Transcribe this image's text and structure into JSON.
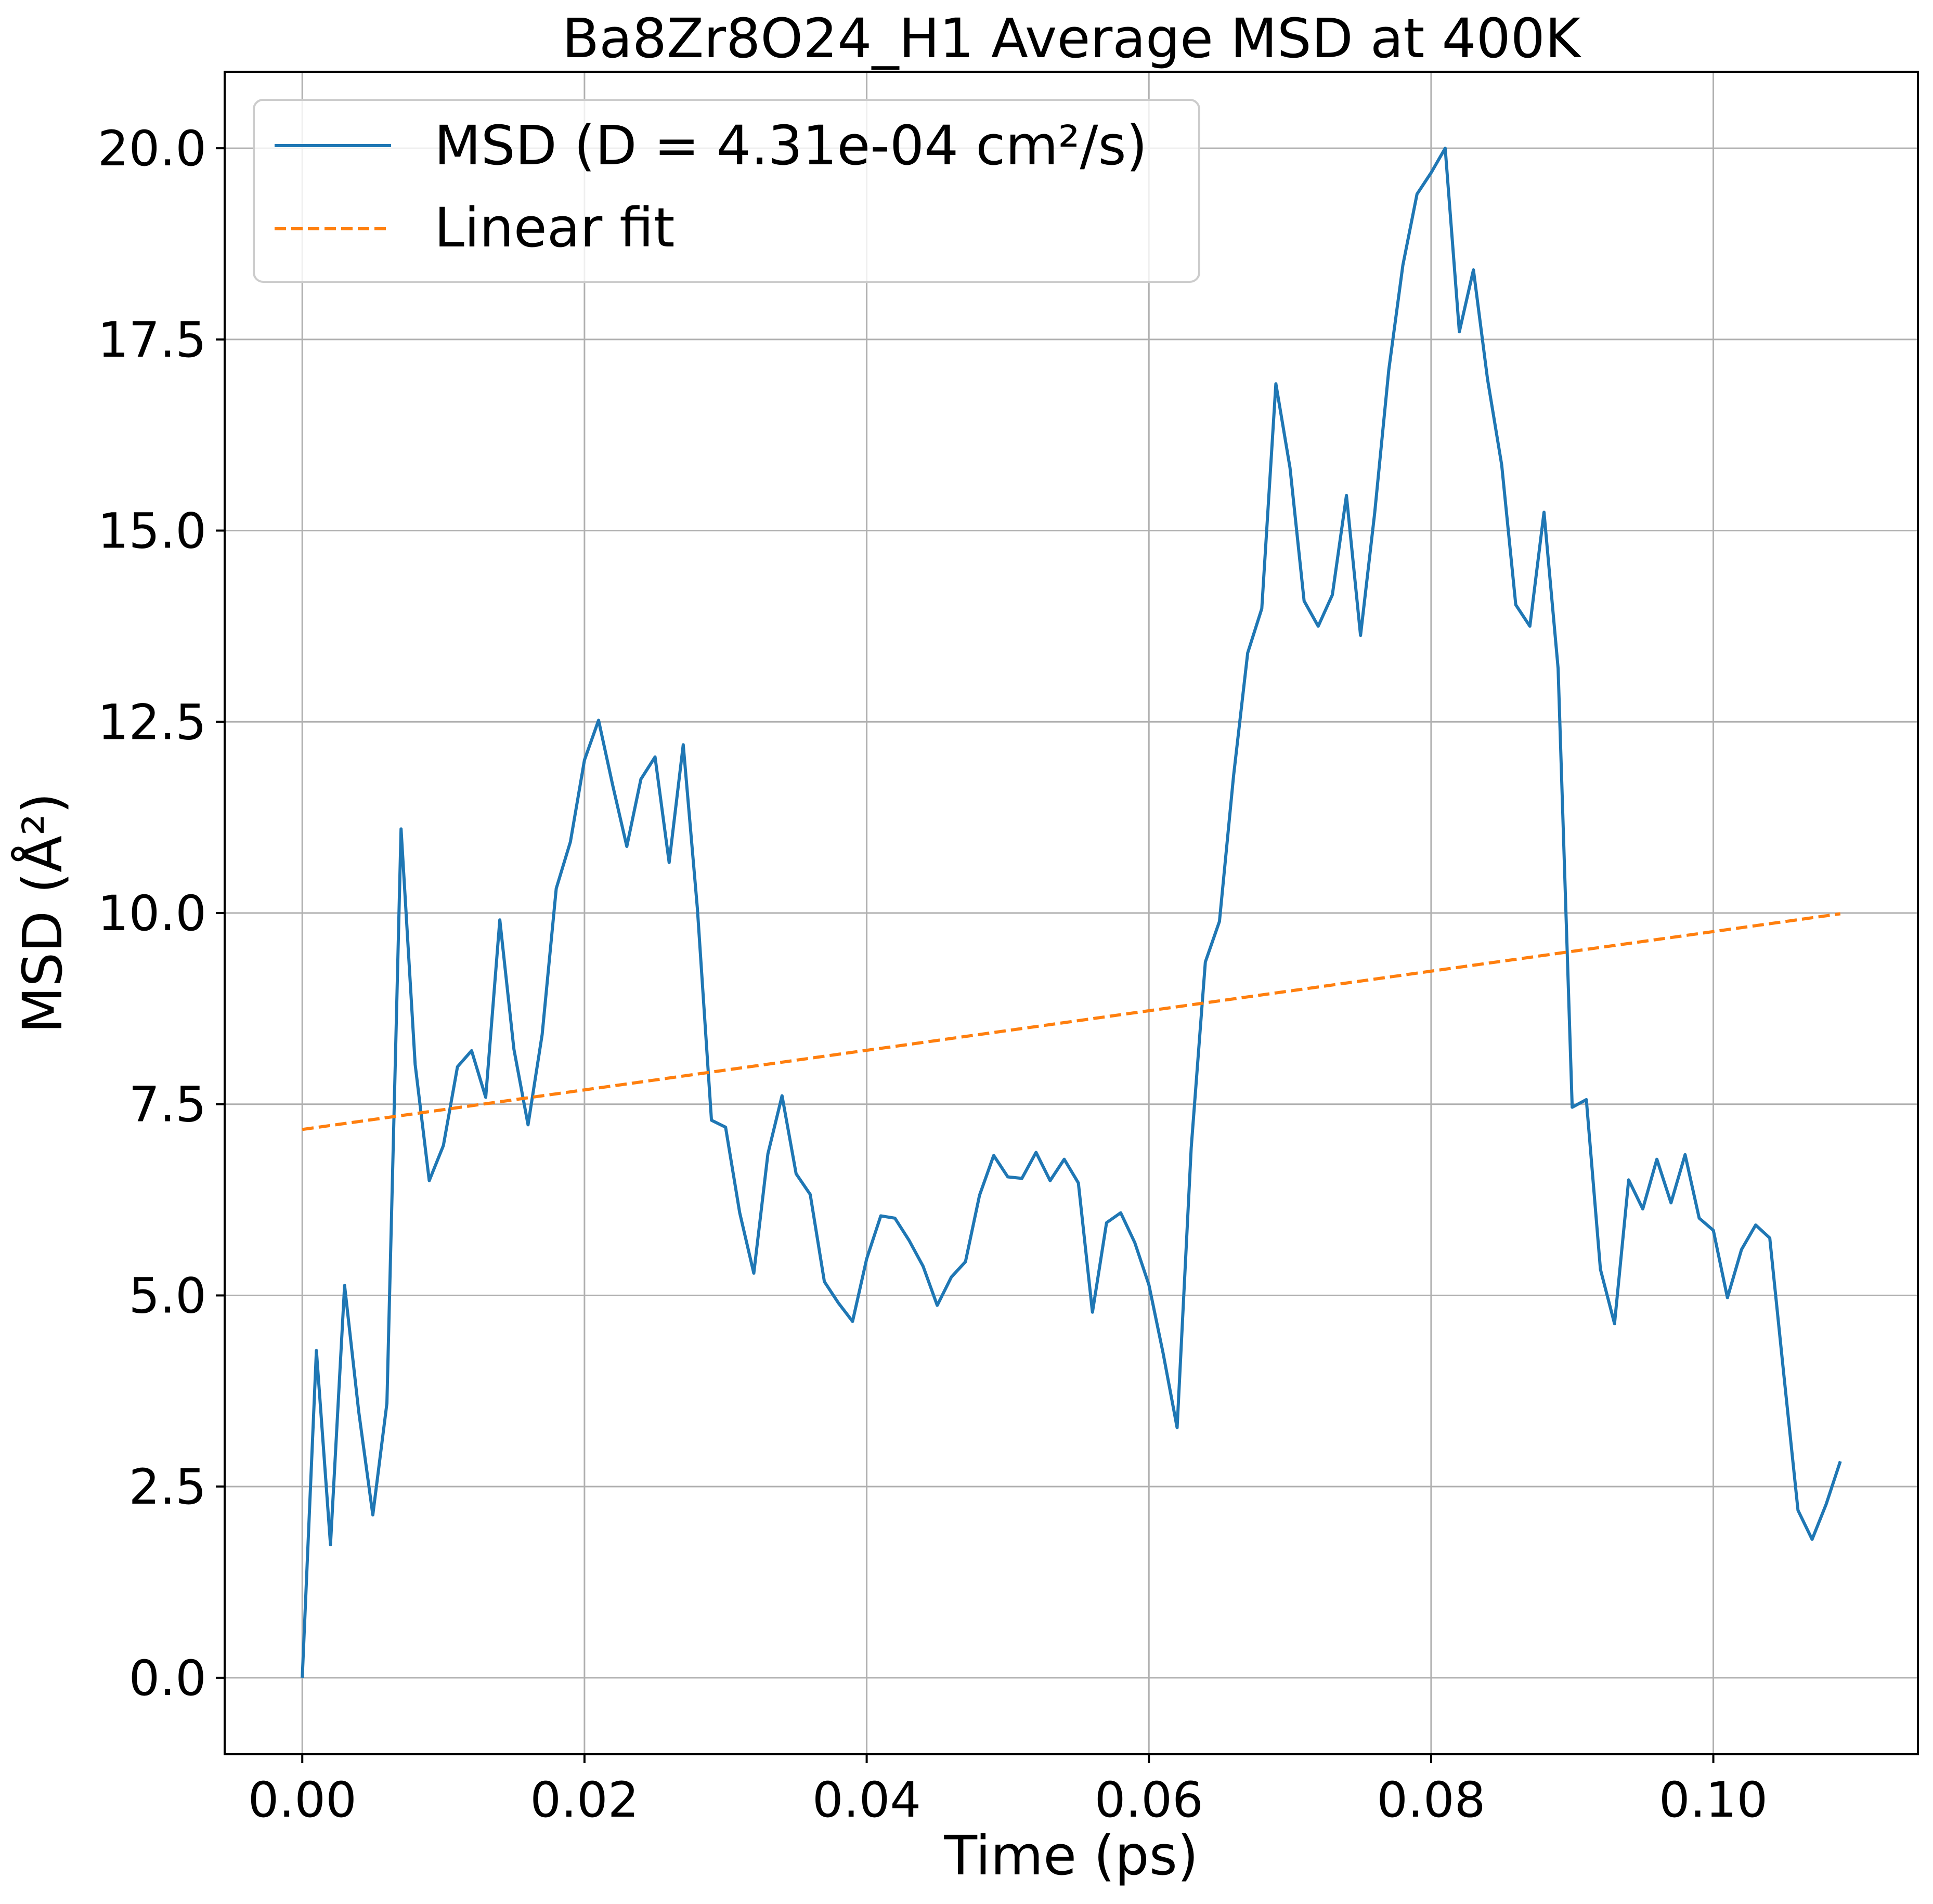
{
  "chart_data": {
    "type": "line",
    "title": "Ba8Zr8O24_H1 Average MSD at 400K",
    "xlabel": "Time (ps)",
    "ylabel": "MSD (Å²)",
    "xlim": [
      -0.0055,
      0.1145
    ],
    "ylim": [
      -1.0,
      21.0
    ],
    "grid": true,
    "legend_position": "top-left",
    "x_ticks": [
      0.0,
      0.02,
      0.04,
      0.06,
      0.08,
      0.1
    ],
    "x_tick_labels": [
      "0.00",
      "0.02",
      "0.04",
      "0.06",
      "0.08",
      "0.10"
    ],
    "y_ticks": [
      0.0,
      2.5,
      5.0,
      7.5,
      10.0,
      12.5,
      15.0,
      17.5,
      20.0
    ],
    "y_tick_labels": [
      "0.0",
      "2.5",
      "5.0",
      "7.5",
      "10.0",
      "12.5",
      "15.0",
      "17.5",
      "20.0"
    ],
    "series": [
      {
        "name": "MSD (D = 4.31e-04 cm²/s)",
        "color": "#1f77b4",
        "style": "solid",
        "x": [
          0.0,
          0.001,
          0.002,
          0.003,
          0.004,
          0.005,
          0.006,
          0.007,
          0.008,
          0.009,
          0.01,
          0.011,
          0.012,
          0.013,
          0.014,
          0.015,
          0.016,
          0.017,
          0.018,
          0.019,
          0.02,
          0.021,
          0.022,
          0.023,
          0.024,
          0.025,
          0.026,
          0.027,
          0.028,
          0.029,
          0.03,
          0.031,
          0.032,
          0.033,
          0.034,
          0.035,
          0.036,
          0.037,
          0.038,
          0.039,
          0.04,
          0.041,
          0.042,
          0.043,
          0.044,
          0.045,
          0.046,
          0.047,
          0.048,
          0.049,
          0.05,
          0.051,
          0.052,
          0.053,
          0.054,
          0.055,
          0.056,
          0.057,
          0.058,
          0.059,
          0.06,
          0.061,
          0.062,
          0.063,
          0.064,
          0.065,
          0.066,
          0.067,
          0.068,
          0.069,
          0.07,
          0.071,
          0.072,
          0.073,
          0.074,
          0.075,
          0.076,
          0.077,
          0.078,
          0.079,
          0.08,
          0.081,
          0.082,
          0.083,
          0.084,
          0.085,
          0.086,
          0.087,
          0.088,
          0.089,
          0.09,
          0.091,
          0.092,
          0.093,
          0.094,
          0.095,
          0.096,
          0.097,
          0.098,
          0.099,
          0.1,
          0.101,
          0.102,
          0.103,
          0.104,
          0.105,
          0.106,
          0.107,
          0.108,
          0.109
        ],
        "y": [
          0.0,
          4.28,
          1.74,
          5.13,
          3.48,
          2.13,
          3.59,
          11.1,
          8.02,
          6.5,
          6.96,
          7.99,
          8.2,
          7.59,
          9.91,
          8.22,
          7.23,
          8.41,
          10.32,
          10.93,
          12.0,
          12.52,
          11.67,
          10.87,
          11.75,
          12.04,
          10.66,
          12.2,
          10.06,
          7.29,
          7.2,
          6.08,
          5.29,
          6.85,
          7.61,
          6.59,
          6.32,
          5.18,
          4.9,
          4.66,
          5.48,
          6.04,
          6.01,
          5.72,
          5.38,
          4.87,
          5.24,
          5.44,
          6.31,
          6.83,
          6.55,
          6.53,
          6.87,
          6.5,
          6.78,
          6.47,
          4.78,
          5.95,
          6.08,
          5.69,
          5.14,
          4.25,
          3.27,
          6.93,
          9.36,
          9.89,
          11.79,
          13.4,
          13.98,
          16.92,
          15.82,
          14.08,
          13.75,
          14.16,
          15.46,
          13.63,
          15.23,
          17.1,
          18.47,
          19.4,
          19.68,
          20.0,
          17.6,
          18.41,
          16.98,
          15.86,
          14.03,
          13.75,
          15.24,
          13.2,
          7.46,
          7.56,
          5.34,
          4.63,
          6.51,
          6.13,
          6.78,
          6.21,
          6.84,
          6.01,
          5.85,
          4.97,
          5.6,
          5.92,
          5.75,
          3.96,
          2.19,
          1.81,
          2.27,
          2.83
        ]
      },
      {
        "name": "Linear fit",
        "color": "#ff7f0e",
        "style": "dashed",
        "x": [
          0.0,
          0.109
        ],
        "y": [
          7.17,
          9.99
        ]
      }
    ]
  }
}
